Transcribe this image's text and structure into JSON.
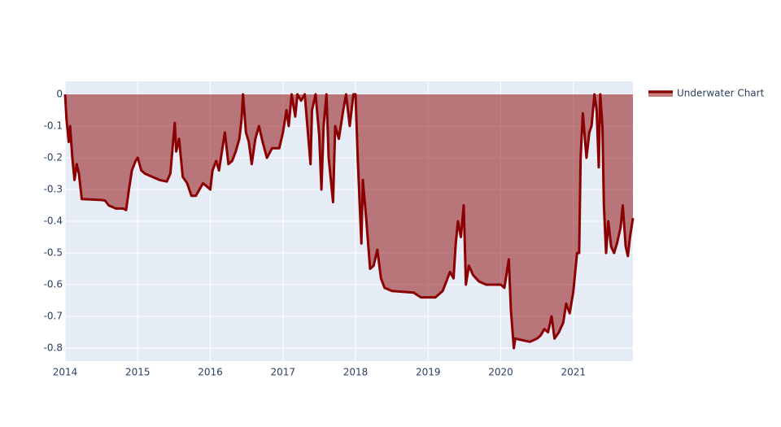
{
  "chart_data": {
    "type": "area",
    "x": [
      2014.0,
      2014.02,
      2014.05,
      2014.07,
      2014.1,
      2014.13,
      2014.16,
      2014.19,
      2014.23,
      2014.5,
      2014.55,
      2014.6,
      2014.7,
      2014.8,
      2014.84,
      2014.88,
      2014.92,
      2014.97,
      2015.0,
      2015.05,
      2015.1,
      2015.2,
      2015.3,
      2015.4,
      2015.45,
      2015.51,
      2015.53,
      2015.57,
      2015.62,
      2015.68,
      2015.74,
      2015.8,
      2015.85,
      2015.9,
      2015.95,
      2016.0,
      2016.03,
      2016.08,
      2016.12,
      2016.16,
      2016.2,
      2016.25,
      2016.3,
      2016.35,
      2016.4,
      2016.43,
      2016.45,
      2016.49,
      2016.53,
      2016.57,
      2016.62,
      2016.67,
      2016.72,
      2016.78,
      2016.85,
      2016.95,
      2017.0,
      2017.05,
      2017.08,
      2017.12,
      2017.17,
      2017.2,
      2017.25,
      2017.3,
      2017.38,
      2017.4,
      2017.45,
      2017.5,
      2017.53,
      2017.56,
      2017.6,
      2017.63,
      2017.69,
      2017.72,
      2017.77,
      2017.83,
      2017.87,
      2017.92,
      2017.97,
      2018.0,
      2018.03,
      2018.08,
      2018.1,
      2018.15,
      2018.2,
      2018.25,
      2018.3,
      2018.35,
      2018.4,
      2018.5,
      2018.8,
      2018.9,
      2019.1,
      2019.2,
      2019.3,
      2019.35,
      2019.38,
      2019.41,
      2019.45,
      2019.49,
      2019.52,
      2019.56,
      2019.62,
      2019.7,
      2019.8,
      2020.0,
      2020.05,
      2020.11,
      2020.14,
      2020.18,
      2020.2,
      2020.3,
      2020.4,
      2020.5,
      2020.55,
      2020.6,
      2020.65,
      2020.7,
      2020.74,
      2020.8,
      2020.86,
      2020.9,
      2020.95,
      2021.0,
      2021.05,
      2021.08,
      2021.1,
      2021.13,
      2021.18,
      2021.22,
      2021.25,
      2021.29,
      2021.32,
      2021.35,
      2021.37,
      2021.4,
      2021.42,
      2021.45,
      2021.48,
      2021.52,
      2021.56,
      2021.6,
      2021.65,
      2021.68,
      2021.72,
      2021.75,
      2021.78,
      2021.82
    ],
    "series": [
      {
        "name": "Underwater Chart",
        "color": "#8b0000",
        "fill": "rgba(139,0,0,0.5)",
        "values": [
          0,
          -0.08,
          -0.15,
          -0.1,
          -0.2,
          -0.27,
          -0.22,
          -0.25,
          -0.33,
          -0.333,
          -0.335,
          -0.35,
          -0.36,
          -0.36,
          -0.365,
          -0.3,
          -0.24,
          -0.21,
          -0.2,
          -0.24,
          -0.25,
          -0.26,
          -0.27,
          -0.275,
          -0.25,
          -0.09,
          -0.18,
          -0.14,
          -0.26,
          -0.28,
          -0.32,
          -0.32,
          -0.3,
          -0.28,
          -0.29,
          -0.3,
          -0.24,
          -0.21,
          -0.24,
          -0.18,
          -0.12,
          -0.22,
          -0.21,
          -0.18,
          -0.14,
          -0.08,
          0,
          -0.12,
          -0.15,
          -0.22,
          -0.14,
          -0.1,
          -0.15,
          -0.2,
          -0.17,
          -0.17,
          -0.12,
          -0.05,
          -0.1,
          0,
          -0.07,
          0,
          -0.02,
          0,
          -0.22,
          -0.05,
          0,
          -0.13,
          -0.3,
          -0.1,
          0,
          -0.2,
          -0.34,
          -0.1,
          -0.14,
          -0.05,
          0,
          -0.1,
          0,
          0,
          -0.2,
          -0.47,
          -0.27,
          -0.4,
          -0.55,
          -0.54,
          -0.49,
          -0.58,
          -0.61,
          -0.62,
          -0.625,
          -0.64,
          -0.64,
          -0.62,
          -0.56,
          -0.58,
          -0.47,
          -0.4,
          -0.45,
          -0.35,
          -0.6,
          -0.54,
          -0.57,
          -0.59,
          -0.6,
          -0.6,
          -0.61,
          -0.52,
          -0.68,
          -0.8,
          -0.77,
          -0.775,
          -0.78,
          -0.77,
          -0.76,
          -0.74,
          -0.75,
          -0.7,
          -0.77,
          -0.75,
          -0.72,
          -0.66,
          -0.69,
          -0.62,
          -0.5,
          -0.5,
          -0.2,
          -0.06,
          -0.2,
          -0.12,
          -0.1,
          0,
          -0.05,
          -0.23,
          0,
          -0.1,
          -0.35,
          -0.5,
          -0.4,
          -0.48,
          -0.5,
          -0.47,
          -0.42,
          -0.35,
          -0.48,
          -0.51,
          -0.45,
          -0.39
        ]
      }
    ],
    "xlim": [
      2014,
      2021.82
    ],
    "xticks": [
      2014,
      2015,
      2016,
      2017,
      2018,
      2019,
      2020,
      2021
    ],
    "ylim": [
      -0.841,
      0.041
    ],
    "yticks": [
      0,
      -0.1,
      -0.2,
      -0.3,
      -0.4,
      -0.5,
      -0.6,
      -0.7,
      -0.8
    ],
    "grid": true,
    "legend": "right"
  }
}
